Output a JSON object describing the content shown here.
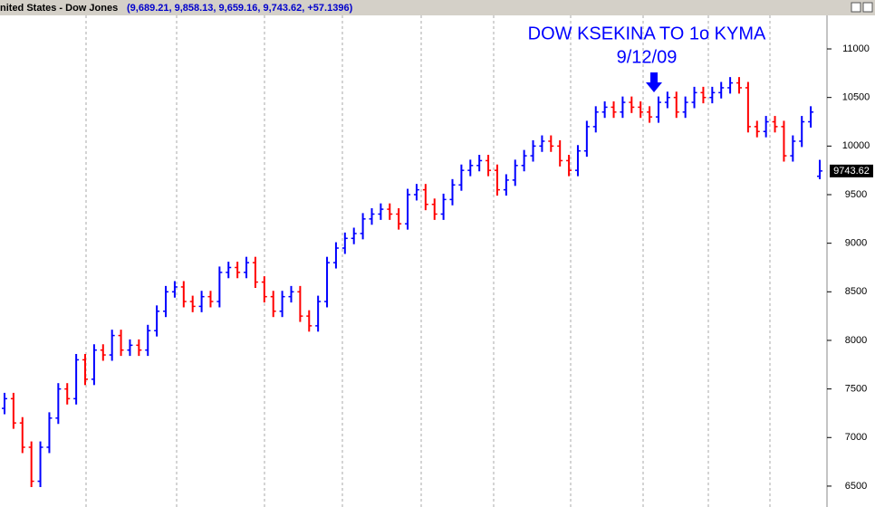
{
  "header": {
    "title": "nited States - Dow Jones",
    "quote": "(9,689.21, 9,858.13, 9,659.16, 9,743.62, +57.1396)"
  },
  "chart_data": {
    "type": "ohlc",
    "annotation": [
      "DOW KSEKINA TO 1o KYMA",
      "9/12/09"
    ],
    "up_color": "#0000ff",
    "down_color": "#ff0000",
    "annotation_color": "#0000ff",
    "ylim": [
      6285,
      11345
    ],
    "yticks": [
      6500,
      7000,
      7500,
      8000,
      8500,
      9000,
      9500,
      10000,
      10500,
      11000
    ],
    "series": [
      {
        "open": [
          7300,
          7400,
          7150,
          6900,
          6550,
          6900,
          7200,
          7500,
          7400,
          7800,
          7600,
          7900,
          7850,
          8050,
          7900,
          7950,
          7900,
          8100,
          8300,
          8500,
          8550,
          8400,
          8350,
          8450,
          8400,
          8700,
          8750,
          8700,
          8800,
          8600,
          8450,
          8300,
          8450,
          8500,
          8250,
          8150,
          8400,
          8800,
          8950,
          9050,
          9100,
          9250,
          9300,
          9350,
          9300,
          9200,
          9500,
          9550,
          9400,
          9300,
          9450,
          9600,
          9750,
          9800,
          9850,
          9750,
          9550,
          9650,
          9800,
          9900,
          10000,
          10050,
          10000,
          9850,
          9750,
          9950,
          10200,
          10350,
          10400,
          10350,
          10450,
          10400,
          10350,
          10300,
          10450,
          10500,
          10350,
          10450,
          10550,
          10500,
          10550,
          10600,
          10650,
          10600,
          10200,
          10150,
          10250,
          10200,
          9900,
          10050,
          10250,
          9689.21
        ],
        "high": [
          7460,
          7460,
          7210,
          6960,
          6960,
          7260,
          7560,
          7560,
          7860,
          7860,
          7960,
          7960,
          8110,
          8110,
          8010,
          8010,
          8160,
          8360,
          8560,
          8610,
          8610,
          8460,
          8510,
          8510,
          8760,
          8810,
          8810,
          8860,
          8860,
          8660,
          8510,
          8510,
          8560,
          8560,
          8310,
          8460,
          8860,
          9010,
          9110,
          9160,
          9310,
          9360,
          9410,
          9410,
          9360,
          9560,
          9610,
          9610,
          9460,
          9510,
          9660,
          9810,
          9860,
          9910,
          9910,
          9810,
          9710,
          9860,
          9960,
          10060,
          10110,
          10110,
          10060,
          9910,
          10010,
          10260,
          10410,
          10460,
          10460,
          10510,
          10510,
          10460,
          10410,
          10510,
          10560,
          10560,
          10510,
          10610,
          10610,
          10610,
          10660,
          10710,
          10710,
          10660,
          10260,
          10310,
          10310,
          10260,
          10110,
          10310,
          10410,
          9858.13
        ],
        "low": [
          7240,
          7090,
          6840,
          6490,
          6490,
          6840,
          7140,
          7340,
          7340,
          7540,
          7540,
          7790,
          7790,
          7840,
          7840,
          7840,
          7840,
          8040,
          8240,
          8440,
          8340,
          8290,
          8290,
          8340,
          8340,
          8640,
          8640,
          8640,
          8540,
          8390,
          8240,
          8240,
          8390,
          8190,
          8090,
          8090,
          8340,
          8740,
          8890,
          8990,
          9040,
          9190,
          9240,
          9240,
          9140,
          9140,
          9440,
          9340,
          9240,
          9240,
          9390,
          9540,
          9690,
          9740,
          9690,
          9490,
          9490,
          9590,
          9740,
          9840,
          9940,
          9940,
          9790,
          9690,
          9690,
          9890,
          10140,
          10290,
          10290,
          10290,
          10340,
          10290,
          10240,
          10240,
          10390,
          10290,
          10290,
          10390,
          10440,
          10440,
          10490,
          10540,
          10540,
          10140,
          10090,
          10090,
          10140,
          9840,
          9840,
          9990,
          10190,
          9659.16
        ],
        "close": [
          7400,
          7150,
          6900,
          6550,
          6900,
          7200,
          7500,
          7400,
          7800,
          7600,
          7900,
          7850,
          8050,
          7900,
          7950,
          7900,
          8100,
          8300,
          8500,
          8550,
          8400,
          8350,
          8450,
          8400,
          8700,
          8750,
          8700,
          8800,
          8600,
          8450,
          8300,
          8450,
          8500,
          8250,
          8150,
          8400,
          8800,
          8950,
          9050,
          9100,
          9250,
          9300,
          9350,
          9300,
          9200,
          9500,
          9550,
          9400,
          9300,
          9450,
          9600,
          9750,
          9800,
          9850,
          9750,
          9550,
          9650,
          9800,
          9900,
          10000,
          10050,
          10000,
          9850,
          9750,
          9950,
          10200,
          10350,
          10400,
          10350,
          10450,
          10400,
          10350,
          10300,
          10450,
          10500,
          10350,
          10450,
          10550,
          10500,
          10550,
          10600,
          10650,
          10600,
          10200,
          10150,
          10250,
          10200,
          9900,
          10050,
          10250,
          10350,
          9743.62
        ]
      }
    ]
  }
}
